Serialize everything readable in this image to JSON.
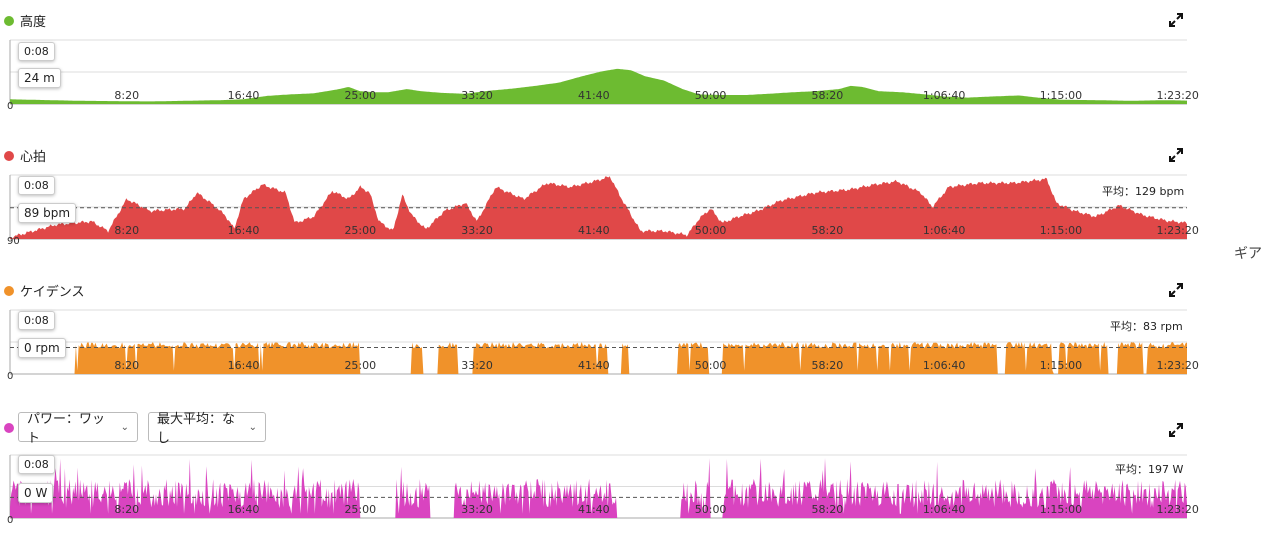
{
  "gear_label": "ギア",
  "power_controls": {
    "metric_select": "パワー：ワット",
    "max_avg_select": "最大平均：なし"
  },
  "chart_data": [
    {
      "id": "altitude",
      "type": "area",
      "title": "高度",
      "color": "#6dbb31",
      "ylim": [
        0,
        300
      ],
      "y_ticks_visible": [
        "0"
      ],
      "x_ticks": [
        "8:20",
        "16:40",
        "25:00",
        "33:20",
        "41:40",
        "50:00",
        "58:20",
        "1:06:40",
        "1:15:00",
        "1:23:20"
      ],
      "x_tick_seconds": [
        500,
        1000,
        1500,
        2000,
        2500,
        3000,
        3500,
        4000,
        4500,
        5000
      ],
      "duration_seconds": 5040,
      "tooltip_time": "0:08",
      "tooltip_value": "24 m",
      "average_label": "",
      "points": [
        [
          0,
          22
        ],
        [
          300,
          15
        ],
        [
          600,
          12
        ],
        [
          900,
          18
        ],
        [
          1000,
          22
        ],
        [
          1100,
          38
        ],
        [
          1200,
          45
        ],
        [
          1300,
          50
        ],
        [
          1400,
          68
        ],
        [
          1450,
          80
        ],
        [
          1500,
          60
        ],
        [
          1560,
          55
        ],
        [
          1620,
          55
        ],
        [
          1700,
          70
        ],
        [
          1760,
          60
        ],
        [
          1850,
          52
        ],
        [
          1950,
          48
        ],
        [
          2050,
          62
        ],
        [
          2150,
          72
        ],
        [
          2250,
          85
        ],
        [
          2350,
          100
        ],
        [
          2450,
          130
        ],
        [
          2530,
          152
        ],
        [
          2600,
          165
        ],
        [
          2660,
          158
        ],
        [
          2720,
          130
        ],
        [
          2800,
          110
        ],
        [
          2880,
          70
        ],
        [
          2950,
          45
        ],
        [
          3050,
          42
        ],
        [
          3150,
          42
        ],
        [
          3250,
          48
        ],
        [
          3350,
          55
        ],
        [
          3450,
          60
        ],
        [
          3550,
          70
        ],
        [
          3600,
          85
        ],
        [
          3650,
          80
        ],
        [
          3720,
          60
        ],
        [
          3820,
          55
        ],
        [
          3920,
          45
        ],
        [
          4000,
          35
        ],
        [
          4100,
          30
        ],
        [
          4200,
          35
        ],
        [
          4320,
          40
        ],
        [
          4400,
          30
        ],
        [
          4500,
          20
        ],
        [
          4650,
          18
        ],
        [
          4800,
          15
        ],
        [
          4950,
          18
        ],
        [
          5040,
          16
        ]
      ]
    },
    {
      "id": "heart_rate",
      "type": "area",
      "title": "心拍",
      "color": "#e04848",
      "ylim": [
        90,
        170
      ],
      "y_ticks_visible": [
        "90"
      ],
      "average": 129,
      "average_label": "平均：129 bpm",
      "x_ticks": [
        "8:20",
        "16:40",
        "25:00",
        "33:20",
        "41:40",
        "50:00",
        "58:20",
        "1:06:40",
        "1:15:00",
        "1:23:20"
      ],
      "x_tick_seconds": [
        500,
        1000,
        1500,
        2000,
        2500,
        3000,
        3500,
        4000,
        4500,
        5000
      ],
      "duration_seconds": 5040,
      "tooltip_time": "0:08",
      "tooltip_value": "89 bpm",
      "points": [
        [
          0,
          92
        ],
        [
          200,
          108
        ],
        [
          350,
          112
        ],
        [
          420,
          100
        ],
        [
          500,
          140
        ],
        [
          600,
          125
        ],
        [
          750,
          128
        ],
        [
          800,
          148
        ],
        [
          860,
          135
        ],
        [
          920,
          120
        ],
        [
          960,
          103
        ],
        [
          1000,
          140
        ],
        [
          1080,
          158
        ],
        [
          1180,
          148
        ],
        [
          1220,
          110
        ],
        [
          1300,
          118
        ],
        [
          1380,
          150
        ],
        [
          1450,
          140
        ],
        [
          1500,
          155
        ],
        [
          1540,
          148
        ],
        [
          1580,
          112
        ],
        [
          1640,
          100
        ],
        [
          1680,
          145
        ],
        [
          1720,
          120
        ],
        [
          1780,
          102
        ],
        [
          1860,
          125
        ],
        [
          1950,
          135
        ],
        [
          2000,
          112
        ],
        [
          2080,
          155
        ],
        [
          2200,
          140
        ],
        [
          2300,
          160
        ],
        [
          2400,
          155
        ],
        [
          2500,
          162
        ],
        [
          2570,
          168
        ],
        [
          2610,
          145
        ],
        [
          2700,
          100
        ],
        [
          2800,
          100
        ],
        [
          2900,
          95
        ],
        [
          2950,
          115
        ],
        [
          3000,
          128
        ],
        [
          3050,
          110
        ],
        [
          3120,
          118
        ],
        [
          3200,
          125
        ],
        [
          3300,
          138
        ],
        [
          3450,
          148
        ],
        [
          3600,
          152
        ],
        [
          3700,
          158
        ],
        [
          3800,
          162
        ],
        [
          3900,
          148
        ],
        [
          3950,
          130
        ],
        [
          4020,
          155
        ],
        [
          4150,
          160
        ],
        [
          4300,
          160
        ],
        [
          4440,
          165
        ],
        [
          4480,
          135
        ],
        [
          4560,
          125
        ],
        [
          4650,
          118
        ],
        [
          4750,
          132
        ],
        [
          4850,
          120
        ],
        [
          4950,
          113
        ],
        [
          5040,
          110
        ]
      ]
    },
    {
      "id": "cadence",
      "type": "area",
      "title": "ケイデンス",
      "color": "#f0922a",
      "ylim": [
        0,
        200
      ],
      "y_ticks_visible": [
        "0"
      ],
      "average": 83,
      "average_label": "平均：83 rpm",
      "x_ticks": [
        "8:20",
        "16:40",
        "25:00",
        "33:20",
        "41:40",
        "50:00",
        "58:20",
        "1:06:40",
        "1:15:00",
        "1:23:20"
      ],
      "x_tick_seconds": [
        500,
        1000,
        1500,
        2000,
        2500,
        3000,
        3500,
        4000,
        4500,
        5000
      ],
      "duration_seconds": 5040,
      "tooltip_time": "0:08",
      "tooltip_value": "0 rpm",
      "base": 90,
      "variation": 10,
      "gaps": [
        [
          0,
          280
        ],
        [
          1500,
          1720
        ],
        [
          1770,
          1830
        ],
        [
          1920,
          1980
        ],
        [
          2560,
          2620
        ],
        [
          2650,
          2860
        ],
        [
          2990,
          3050
        ],
        [
          4230,
          4260
        ],
        [
          4470,
          4490
        ],
        [
          4700,
          4740
        ],
        [
          4850,
          4870
        ]
      ]
    },
    {
      "id": "power",
      "type": "area",
      "title": "",
      "color": "#d944c0",
      "ylim": [
        0,
        600
      ],
      "y_ticks_visible": [
        "0"
      ],
      "average": 197,
      "average_label": "平均：197 W",
      "x_ticks": [
        "8:20",
        "16:40",
        "25:00",
        "33:20",
        "41:40",
        "50:00",
        "58:20",
        "1:06:40",
        "1:15:00",
        "1:23:20"
      ],
      "x_tick_seconds": [
        500,
        1000,
        1500,
        2000,
        2500,
        3000,
        3500,
        4000,
        4500,
        5000
      ],
      "duration_seconds": 5040,
      "tooltip_time": "0:08",
      "tooltip_value": "0 W",
      "base": 220,
      "variation": 200,
      "gaps": [
        [
          1500,
          1650
        ],
        [
          1800,
          1900
        ],
        [
          2600,
          2870
        ],
        [
          3000,
          3050
        ]
      ]
    }
  ]
}
